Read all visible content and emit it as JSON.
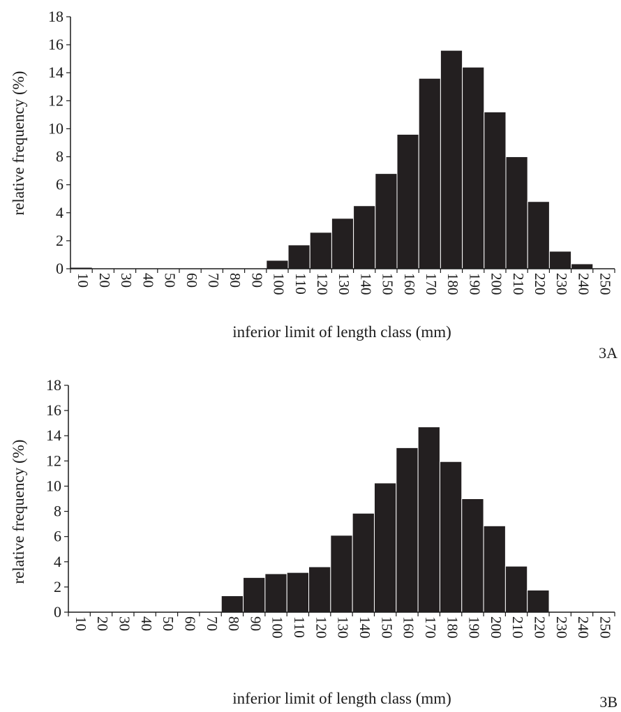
{
  "colors": {
    "bar": "#231f20",
    "axis": "#1a1a1a",
    "background": "#ffffff"
  },
  "chart_data": [
    {
      "type": "bar",
      "panel_label": "3A",
      "xlabel": "inferior limit of length class (mm)",
      "ylabel": "relative frequency (%)",
      "ylim": [
        0,
        18
      ],
      "yticks": [
        "0",
        "2",
        "4",
        "6",
        "8",
        "10",
        "12",
        "14",
        "16",
        "18"
      ],
      "categories": [
        "10",
        "20",
        "30",
        "40",
        "50",
        "60",
        "70",
        "80",
        "90",
        "100",
        "110",
        "120",
        "130",
        "140",
        "150",
        "160",
        "170",
        "180",
        "190",
        "200",
        "210",
        "220",
        "230",
        "240",
        "250"
      ],
      "values": [
        0.1,
        0,
        0,
        0,
        0,
        0,
        0,
        0.05,
        0.05,
        0.6,
        1.7,
        2.6,
        3.6,
        4.5,
        6.8,
        9.6,
        13.6,
        15.6,
        14.4,
        11.2,
        8.0,
        4.8,
        1.25,
        0.35,
        0.05
      ],
      "grid": false
    },
    {
      "type": "bar",
      "panel_label": "3B",
      "xlabel": "inferior limit of length class (mm)",
      "ylabel": "relative frequency (%)",
      "ylim": [
        0,
        18
      ],
      "yticks": [
        "0",
        "2",
        "4",
        "6",
        "8",
        "10",
        "12",
        "14",
        "16",
        "18"
      ],
      "categories": [
        "10",
        "20",
        "30",
        "40",
        "50",
        "60",
        "70",
        "80",
        "90",
        "100",
        "110",
        "120",
        "130",
        "140",
        "150",
        "160",
        "170",
        "180",
        "190",
        "200",
        "210",
        "220",
        "230",
        "240",
        "250"
      ],
      "values": [
        0,
        0,
        0,
        0,
        0,
        0,
        0.05,
        1.3,
        2.75,
        3.05,
        3.15,
        3.6,
        6.1,
        7.85,
        10.25,
        13.05,
        14.7,
        11.95,
        9.0,
        6.85,
        3.65,
        1.75,
        0,
        0,
        0.05
      ],
      "grid": false
    }
  ]
}
